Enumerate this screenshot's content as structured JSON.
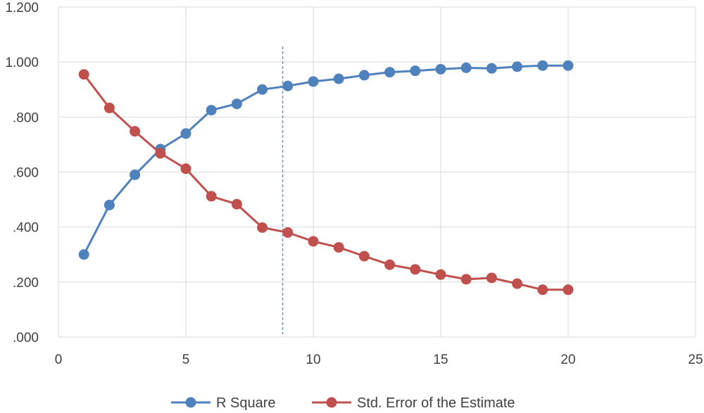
{
  "chart_data": {
    "type": "line",
    "title": "",
    "xlabel": "",
    "ylabel": "",
    "xlim": [
      0,
      25
    ],
    "ylim": [
      0,
      1.2
    ],
    "x_ticks": [
      "0",
      "5",
      "10",
      "15",
      "20",
      "25"
    ],
    "y_ticks": [
      ".000",
      ".200",
      ".400",
      ".600",
      ".800",
      "1.000",
      "1.200"
    ],
    "grid": true,
    "legend_position": "bottom",
    "reference_line": {
      "orientation": "vertical",
      "x": 8.8,
      "style": "dashed",
      "color": "#5B9BD5"
    },
    "x": [
      1,
      2,
      3,
      4,
      5,
      6,
      7,
      8,
      9,
      10,
      11,
      12,
      13,
      14,
      15,
      16,
      17,
      18,
      19,
      20
    ],
    "series": [
      {
        "name": "R Square",
        "color": "#4F81BD",
        "values": [
          0.3,
          0.48,
          0.59,
          0.683,
          0.74,
          0.825,
          0.848,
          0.9,
          0.913,
          0.929,
          0.939,
          0.952,
          0.963,
          0.968,
          0.974,
          0.979,
          0.977,
          0.983,
          0.987,
          0.987
        ]
      },
      {
        "name": "Std. Error of the Estimate",
        "color": "#C0504D",
        "values": [
          0.955,
          0.833,
          0.748,
          0.668,
          0.612,
          0.512,
          0.483,
          0.398,
          0.38,
          0.348,
          0.326,
          0.294,
          0.263,
          0.246,
          0.227,
          0.21,
          0.215,
          0.194,
          0.172,
          0.172
        ]
      }
    ]
  }
}
